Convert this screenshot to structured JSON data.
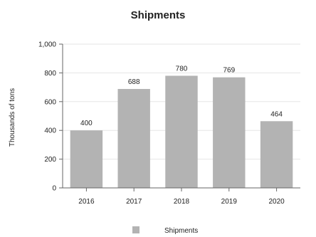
{
  "chart_data": {
    "type": "bar",
    "title": "Shipments",
    "xlabel": "",
    "ylabel": "Thousands of tons",
    "categories": [
      "2016",
      "2017",
      "2018",
      "2019",
      "2020"
    ],
    "series": [
      {
        "name": "Shipments",
        "values": [
          400,
          688,
          780,
          769,
          464
        ]
      }
    ],
    "ylim": [
      0,
      1000
    ],
    "yticks": [
      0,
      200,
      400,
      600,
      800,
      1000
    ],
    "ytick_labels": [
      "0",
      "200",
      "400",
      "600",
      "800",
      "1,000"
    ],
    "data_labels": [
      "400",
      "688",
      "780",
      "769",
      "464"
    ],
    "grid": true,
    "legend": "bottom",
    "colors": {
      "bar": "#b3b3b3",
      "grid": "#e6e6e6",
      "axis": "#666666",
      "text": "#222222"
    }
  }
}
